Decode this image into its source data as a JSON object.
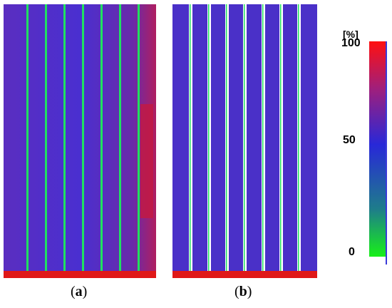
{
  "figure": {
    "panels": [
      {
        "id": "a",
        "caption_open": "(",
        "caption_letter": "a",
        "caption_close": ")"
      },
      {
        "id": "b",
        "caption_open": "(",
        "caption_letter": "b",
        "caption_close": ")"
      }
    ],
    "scale": {
      "unit": "[%]",
      "tick_labels": [
        "100",
        "50",
        "0"
      ],
      "colors": {
        "top": "#ff1010",
        "upper": "#a01f7c",
        "middle": "#2828d8",
        "lower": "#1e7d8a",
        "bottom": "#18f018"
      }
    }
  }
}
